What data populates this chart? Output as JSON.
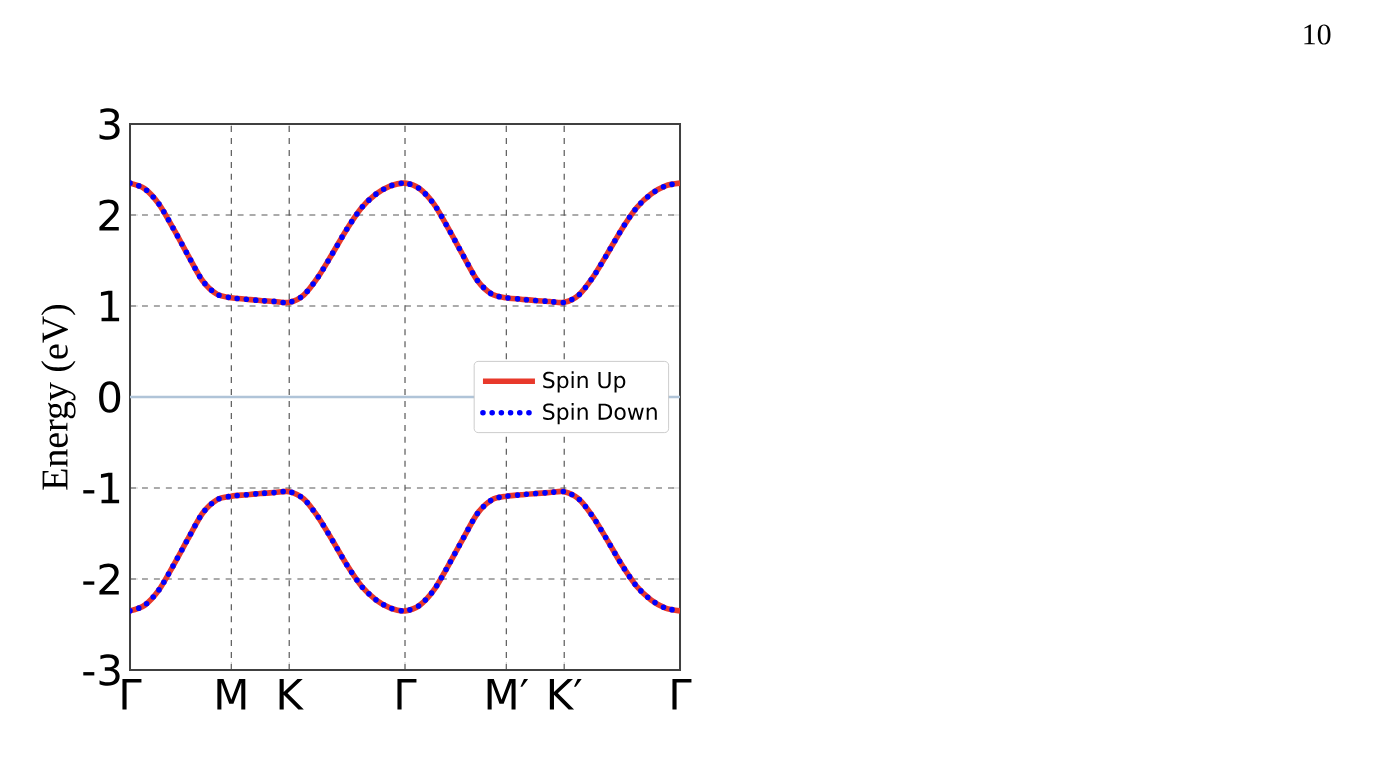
{
  "chart_data": {
    "type": "line",
    "ylabel": "Energy (eV)",
    "categories": [
      "Γ",
      null,
      null,
      null,
      null,
      null,
      null,
      "M",
      null,
      null,
      null,
      "K",
      null,
      null,
      null,
      null,
      null,
      null,
      null,
      "Γ",
      null,
      null,
      null,
      null,
      null,
      null,
      "M′",
      null,
      null,
      null,
      "K′",
      null,
      null,
      null,
      null,
      null,
      null,
      null,
      "Γ"
    ],
    "series": [
      {
        "name": "Spin Up",
        "color": "#e8392b",
        "line_style": "solid",
        "values": [
          2.35,
          2.29,
          2.12,
          1.85,
          1.56,
          1.28,
          1.13,
          1.09,
          1.075,
          1.06,
          1.05,
          1.04,
          1.12,
          1.32,
          1.58,
          1.85,
          2.08,
          2.23,
          2.32,
          2.35,
          2.29,
          2.12,
          1.85,
          1.56,
          1.28,
          1.13,
          1.09,
          1.075,
          1.06,
          1.05,
          1.04,
          1.12,
          1.32,
          1.58,
          1.85,
          2.08,
          2.23,
          2.32,
          2.35
        ]
      },
      {
        "color": "#e8392b",
        "line_style": "solid",
        "values": [
          -2.35,
          -2.29,
          -2.12,
          -1.85,
          -1.56,
          -1.28,
          -1.13,
          -1.09,
          -1.075,
          -1.06,
          -1.05,
          -1.04,
          -1.12,
          -1.32,
          -1.58,
          -1.85,
          -2.08,
          -2.23,
          -2.32,
          -2.35,
          -2.29,
          -2.12,
          -1.85,
          -1.56,
          -1.28,
          -1.13,
          -1.09,
          -1.075,
          -1.06,
          -1.05,
          -1.04,
          -1.12,
          -1.32,
          -1.58,
          -1.85,
          -2.08,
          -2.23,
          -2.32,
          -2.35
        ]
      },
      {
        "name": "Spin Down",
        "color": "#0000ff",
        "line_style": "dotted",
        "values": [
          2.35,
          2.29,
          2.12,
          1.85,
          1.56,
          1.28,
          1.13,
          1.09,
          1.075,
          1.06,
          1.05,
          1.04,
          1.12,
          1.32,
          1.58,
          1.85,
          2.08,
          2.23,
          2.32,
          2.35,
          2.29,
          2.12,
          1.85,
          1.56,
          1.28,
          1.13,
          1.09,
          1.075,
          1.06,
          1.05,
          1.04,
          1.12,
          1.32,
          1.58,
          1.85,
          2.08,
          2.23,
          2.32,
          2.35
        ]
      },
      {
        "color": "#0000ff",
        "line_style": "dotted",
        "values": [
          -2.35,
          -2.29,
          -2.12,
          -1.85,
          -1.56,
          -1.28,
          -1.13,
          -1.09,
          -1.075,
          -1.06,
          -1.05,
          -1.04,
          -1.12,
          -1.32,
          -1.58,
          -1.85,
          -2.08,
          -2.23,
          -2.32,
          -2.35,
          -2.29,
          -2.12,
          -1.85,
          -1.56,
          -1.28,
          -1.13,
          -1.09,
          -1.075,
          -1.06,
          -1.05,
          -1.04,
          -1.12,
          -1.32,
          -1.58,
          -1.85,
          -2.08,
          -2.23,
          -2.32,
          -2.35
        ]
      }
    ],
    "ylim": [
      -3,
      3
    ],
    "yticks": [
      -3,
      -2,
      -1,
      0,
      1,
      2,
      3
    ],
    "ref_lines": [
      {
        "axis": "y",
        "value": 0,
        "color": "#b0c4d8"
      }
    ],
    "grid": true,
    "legend": "right",
    "annotations": [
      "10"
    ]
  }
}
